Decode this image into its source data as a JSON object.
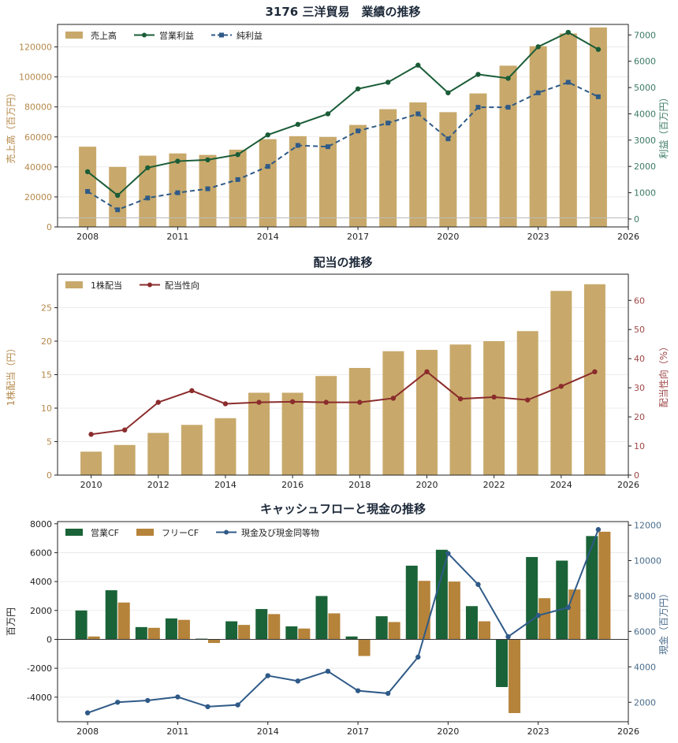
{
  "colors": {
    "sales_bar": "#c8a96b",
    "op_profit": "#1a5c37",
    "net_profit": "#2f5a87",
    "payout": "#8b2c2c",
    "op_cf": "#1a6338",
    "free_cf": "#b5833a",
    "cash": "#2f5a87",
    "left_axis_sales": "#b5894b",
    "right_axis_profit": "#3c7a64",
    "right_axis_payout": "#a04848",
    "right_axis_cash": "#4a6c8c"
  },
  "chart_data": [
    {
      "type": "bar",
      "title": "3176 三洋貿易　業績の推移",
      "x": [
        2008,
        2009,
        2010,
        2011,
        2012,
        2013,
        2014,
        2015,
        2016,
        2017,
        2018,
        2019,
        2020,
        2021,
        2022,
        2023,
        2024,
        2025
      ],
      "xlim": [
        2007,
        2026
      ],
      "xticks": [
        2008,
        2011,
        2014,
        2017,
        2020,
        2023,
        2026
      ],
      "ylabel": "売上高（百万円）",
      "ylim": [
        0,
        135000
      ],
      "yticks": [
        0,
        20000,
        40000,
        60000,
        80000,
        100000,
        120000
      ],
      "y2label": "利益（百万円）",
      "y2lim": [
        -300,
        7400
      ],
      "y2ticks": [
        0,
        1000,
        2000,
        3000,
        4000,
        5000,
        6000,
        7000
      ],
      "legend": "top-left",
      "grid": true,
      "series": [
        {
          "name": "売上高",
          "kind": "bar",
          "axis": "left",
          "values": [
            53500,
            40000,
            47500,
            49000,
            48000,
            51500,
            58500,
            60500,
            60000,
            68000,
            78500,
            83000,
            76500,
            89000,
            107500,
            120500,
            129000,
            133000
          ]
        },
        {
          "name": "営業利益",
          "kind": "line",
          "axis": "right",
          "values": [
            1800,
            900,
            1950,
            2200,
            2250,
            2450,
            3200,
            3600,
            4000,
            4950,
            5200,
            5850,
            4800,
            5500,
            5350,
            6550,
            7100,
            6450
          ]
        },
        {
          "name": "純利益",
          "kind": "line-dashed",
          "axis": "right",
          "values": [
            1050,
            350,
            800,
            1000,
            1150,
            1500,
            2000,
            2800,
            2750,
            3350,
            3650,
            4000,
            3050,
            4250,
            4250,
            4800,
            5200,
            4650
          ]
        }
      ]
    },
    {
      "type": "bar",
      "title": "配当の推移",
      "x": [
        2010,
        2011,
        2012,
        2013,
        2014,
        2015,
        2016,
        2017,
        2018,
        2019,
        2020,
        2021,
        2022,
        2023,
        2024,
        2025
      ],
      "xlim": [
        2009,
        2026
      ],
      "xticks": [
        2010,
        2012,
        2014,
        2016,
        2018,
        2020,
        2022,
        2024,
        2026
      ],
      "ylabel": "1株配当（円）",
      "ylim": [
        0,
        30
      ],
      "yticks": [
        0,
        5,
        10,
        15,
        20,
        25
      ],
      "y2label": "配当性向（%）",
      "y2lim": [
        0,
        69
      ],
      "y2ticks": [
        0,
        10,
        20,
        30,
        40,
        50,
        60
      ],
      "legend": "top-left",
      "grid": true,
      "series": [
        {
          "name": "1株配当",
          "kind": "bar",
          "axis": "left",
          "values": [
            3.5,
            4.5,
            6.3,
            7.5,
            8.5,
            12.3,
            12.3,
            14.8,
            16.0,
            18.5,
            18.7,
            19.5,
            20.0,
            21.5,
            27.5,
            28.5
          ]
        },
        {
          "name": "配当性向",
          "kind": "line",
          "axis": "right",
          "values": [
            14,
            15.5,
            25,
            29,
            24.5,
            25,
            25.2,
            25,
            25,
            26.4,
            35.5,
            26.2,
            26.8,
            25.8,
            30.5,
            35.5
          ]
        }
      ]
    },
    {
      "type": "bar",
      "title": "キャッシュフローと現金の推移",
      "x": [
        2008,
        2009,
        2010,
        2011,
        2012,
        2013,
        2014,
        2015,
        2016,
        2017,
        2018,
        2019,
        2020,
        2021,
        2022,
        2023,
        2024,
        2025
      ],
      "xlim": [
        2007,
        2026
      ],
      "xticks": [
        2008,
        2011,
        2014,
        2017,
        2020,
        2023,
        2026
      ],
      "ylabel": "百万円",
      "ylim": [
        -5700,
        8150
      ],
      "yticks": [
        -4000,
        -2000,
        0,
        2000,
        4000,
        6000,
        8000
      ],
      "y2label": "現金（百万円）",
      "y2lim": [
        900,
        12200
      ],
      "y2ticks": [
        2000,
        4000,
        6000,
        8000,
        10000,
        12000
      ],
      "legend": "top-left",
      "grid": true,
      "series": [
        {
          "name": "営業CF",
          "kind": "bar",
          "axis": "left",
          "values": [
            2000,
            3400,
            850,
            1450,
            50,
            1250,
            2100,
            900,
            3000,
            200,
            1600,
            5100,
            6200,
            2300,
            -3300,
            5700,
            5450,
            7150
          ]
        },
        {
          "name": "フリーCF",
          "kind": "bar",
          "axis": "left",
          "values": [
            200,
            2550,
            800,
            1350,
            -250,
            1000,
            1750,
            750,
            1800,
            -1150,
            1200,
            4050,
            4000,
            1250,
            -5100,
            2850,
            3450,
            7450
          ]
        },
        {
          "name": "現金及び現金同等物",
          "kind": "line",
          "axis": "right",
          "values": [
            1400,
            2000,
            2100,
            2300,
            1750,
            1850,
            3500,
            3200,
            3750,
            2650,
            2500,
            4550,
            10400,
            8650,
            5700,
            6900,
            7350,
            11750
          ]
        }
      ]
    }
  ]
}
